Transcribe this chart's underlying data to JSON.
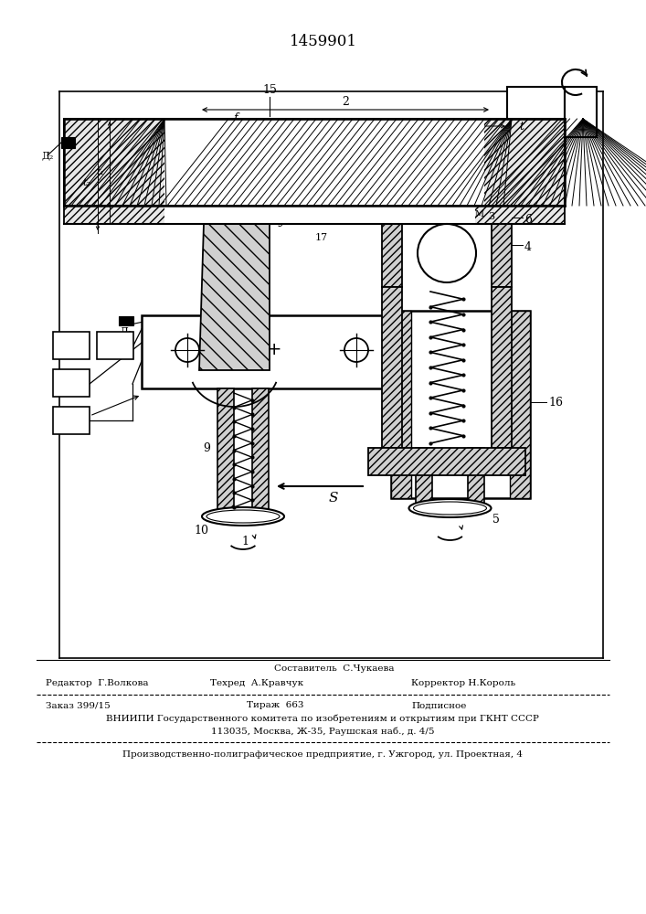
{
  "patent_number": "1459901",
  "bg_color": "#ffffff",
  "footer_line1_center_top": "Составитель  С.Чукаева",
  "footer_line1_left": "Редактор  Г.Волкова",
  "footer_line1_center": "Техред  А.Кравчук",
  "footer_line1_right": "Корректор Н.Король",
  "footer_line2_left": "Заказ 399/15",
  "footer_line2_center": "Тираж  663",
  "footer_line2_right": "Подписное",
  "footer_line3": "ВНИИПИ Государственного комитета по изобретениям и открытиям при ГКНТ СССР",
  "footer_line4": "113035, Москва, Ж-35, Раушская наб., д. 4/5",
  "footer_line5": "Производственно-полиграфическое предприятие, г. Ужгород, ул. Проектная, 4"
}
